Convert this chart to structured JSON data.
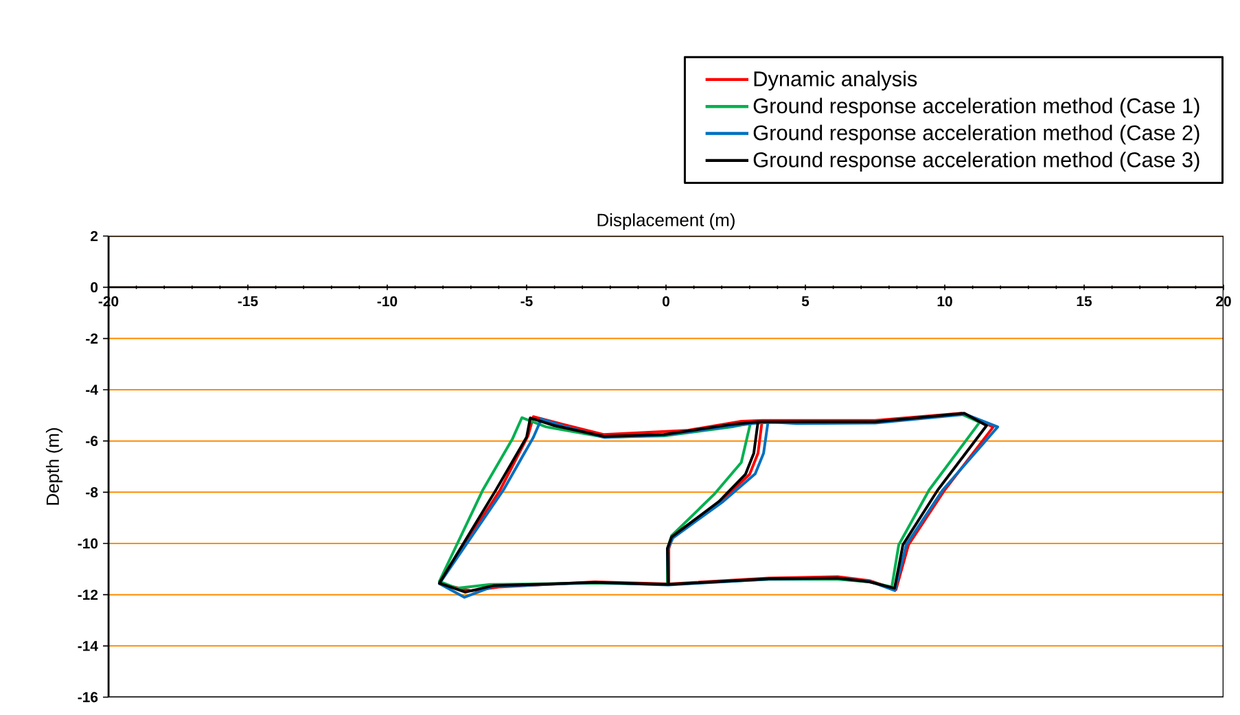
{
  "chart_data": {
    "type": "line",
    "xlabel": "Displacement (m)",
    "ylabel": "Depth (m)",
    "xlim": [
      -20,
      20
    ],
    "ylim": [
      -16,
      2
    ],
    "xticks": [
      -20,
      -15,
      -10,
      -5,
      0,
      5,
      10,
      15,
      20
    ],
    "yticks": [
      2,
      0,
      -2,
      -4,
      -6,
      -8,
      -10,
      -12,
      -14,
      -16
    ],
    "grid": "y",
    "legend": "top right",
    "marker": "none",
    "line_style": "solid",
    "series": [
      {
        "name": "Dynamic analysis",
        "color": "#ff0000",
        "x": [
          3.45,
          5,
          7.5,
          10.6,
          11.74,
          10.0,
          8.7,
          8.25,
          7.3,
          6.16,
          3.69,
          0.1,
          -2.55,
          -6.0,
          -7.0,
          -8.13,
          -5.95,
          -4.95,
          -4.76,
          -3.7,
          -2.22,
          0.74,
          2.7,
          3.45,
          3.3,
          3.0,
          1.95,
          0.25,
          0.1,
          0.1
        ],
        "values": [
          -5.2,
          -5.2,
          -5.2,
          -4.92,
          -5.45,
          -7.91,
          -10.05,
          -11.8,
          -11.45,
          -11.3,
          -11.35,
          -11.58,
          -11.5,
          -11.7,
          -11.85,
          -11.57,
          -7.91,
          -5.8,
          -5.05,
          -5.35,
          -5.75,
          -5.59,
          -5.23,
          -5.2,
          -6.48,
          -7.3,
          -8.36,
          -9.7,
          -10.2,
          -11.58
        ]
      },
      {
        "name": "Ground response acceleration method  (Case 1)",
        "color": "#00b050",
        "x": [
          3.03,
          5,
          7.5,
          10.6,
          11.25,
          9.44,
          8.35,
          8.1,
          7.3,
          6.16,
          3.69,
          0.05,
          -2.55,
          -6.3,
          -7.5,
          -8.13,
          -6.57,
          -5.5,
          -5.17,
          -4.3,
          -2.22,
          -0.08,
          2.38,
          3.03,
          2.7,
          1.72,
          0.2,
          0.05,
          0.05
        ],
        "values": [
          -5.3,
          -5.25,
          -5.25,
          -4.95,
          -5.27,
          -7.91,
          -10.05,
          -11.7,
          -11.5,
          -11.4,
          -11.4,
          -11.6,
          -11.55,
          -11.6,
          -11.75,
          -11.48,
          -7.91,
          -5.9,
          -5.09,
          -5.45,
          -5.85,
          -5.8,
          -5.45,
          -5.3,
          -6.84,
          -8.09,
          -9.7,
          -10.2,
          -11.6
        ]
      },
      {
        "name": "Ground response acceleration method  (Case 2)",
        "color": "#0070c0",
        "x": [
          3.66,
          4.68,
          7.5,
          10.75,
          11.9,
          9.93,
          8.62,
          8.21,
          7.31,
          6.16,
          3.69,
          0.08,
          -2.55,
          -6.24,
          -7.23,
          -8.13,
          -5.83,
          -4.76,
          -4.47,
          -3.7,
          -2.22,
          -0.08,
          2.38,
          3.66,
          3.5,
          3.2,
          2.05,
          0.25,
          0.05,
          0.08
        ],
        "values": [
          -5.25,
          -5.32,
          -5.3,
          -4.96,
          -5.45,
          -7.91,
          -10.05,
          -11.84,
          -11.48,
          -11.36,
          -11.39,
          -11.62,
          -11.52,
          -11.69,
          -12.1,
          -11.57,
          -7.91,
          -5.86,
          -5.14,
          -5.41,
          -5.86,
          -5.77,
          -5.41,
          -5.25,
          -6.48,
          -7.28,
          -8.36,
          -9.78,
          -10.23,
          -11.62
        ]
      },
      {
        "name": "Ground response acceleration method  (Case 3)",
        "color": "#000000",
        "x": [
          3.3,
          5,
          7.5,
          10.7,
          11.5,
          9.75,
          8.5,
          8.2,
          7.3,
          6.16,
          3.69,
          0.08,
          -2.55,
          -6.2,
          -7.2,
          -8.13,
          -6.1,
          -5.0,
          -4.87,
          -4.0,
          -2.22,
          -0.08,
          2.38,
          3.3,
          3.15,
          2.85,
          1.9,
          0.2,
          0.05,
          0.08
        ],
        "values": [
          -5.25,
          -5.25,
          -5.25,
          -4.92,
          -5.4,
          -7.91,
          -10.05,
          -11.75,
          -11.5,
          -11.35,
          -11.38,
          -11.6,
          -11.52,
          -11.65,
          -11.9,
          -11.55,
          -7.91,
          -5.85,
          -5.1,
          -5.4,
          -5.82,
          -5.75,
          -5.35,
          -5.25,
          -6.48,
          -7.3,
          -8.36,
          -9.75,
          -10.2,
          -11.6
        ]
      }
    ]
  }
}
